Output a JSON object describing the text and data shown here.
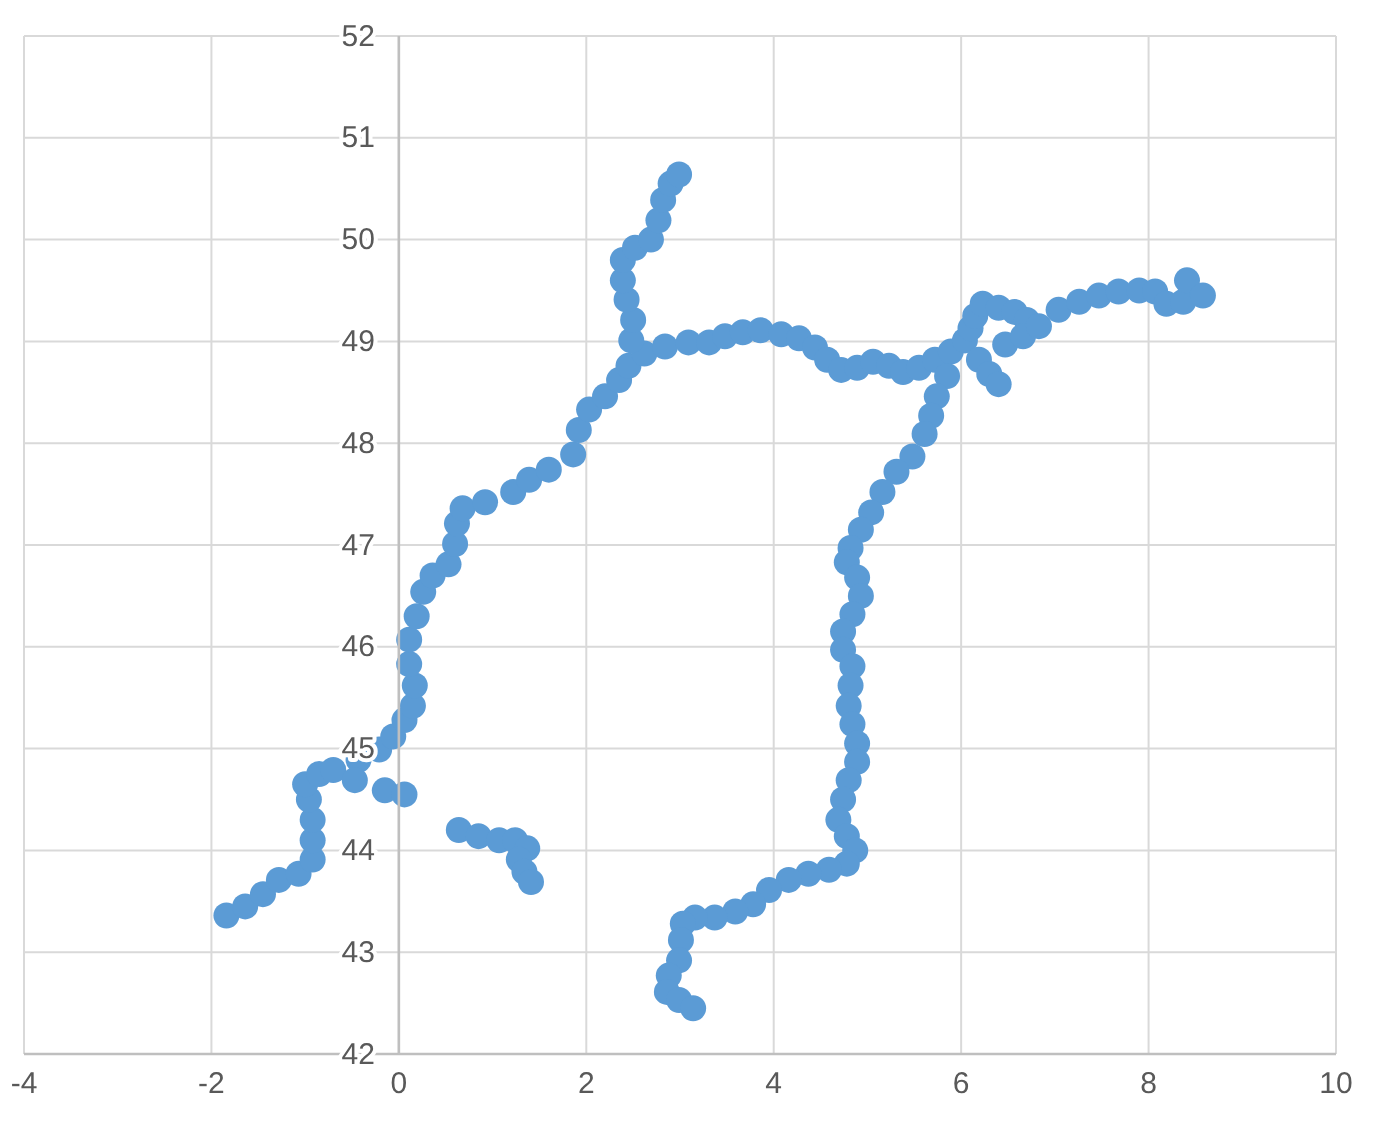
{
  "chart_data": {
    "type": "scatter",
    "x": [
      -1.84,
      -1.64,
      -1.45,
      -1.28,
      -1.07,
      -0.92,
      -0.92,
      -0.92,
      -0.96,
      -1.0,
      -0.85,
      -0.7,
      -0.43,
      -0.21,
      -0.06,
      0.06,
      0.15,
      0.17,
      0.11,
      0.11,
      0.19,
      0.26,
      0.36,
      0.53,
      0.6,
      0.62,
      0.68,
      0.92,
      1.22,
      1.39,
      1.6,
      1.86,
      1.92,
      2.03,
      2.2,
      2.35,
      2.45,
      2.62,
      2.48,
      2.5,
      2.43,
      2.39,
      2.39,
      2.52,
      2.69,
      2.77,
      2.82,
      2.9,
      2.99,
      2.84,
      3.09,
      3.31,
      3.48,
      3.67,
      3.86,
      4.08,
      4.27,
      4.44,
      4.57,
      4.72,
      4.89,
      5.06,
      5.23,
      5.38,
      5.55,
      5.72,
      5.89,
      6.04,
      6.1,
      6.15,
      6.23,
      6.4,
      6.57,
      6.7,
      6.47,
      6.66,
      6.83,
      7.04,
      7.26,
      7.47,
      7.68,
      7.9,
      8.07,
      8.19,
      8.37,
      8.41,
      8.58,
      6.19,
      6.3,
      6.4,
      5.85,
      5.74,
      5.68,
      5.61,
      5.48,
      5.31,
      5.16,
      5.04,
      4.93,
      4.82,
      4.78,
      4.89,
      4.93,
      4.84,
      4.74,
      4.74,
      4.84,
      4.82,
      4.8,
      4.84,
      4.89,
      4.89,
      4.8,
      4.74,
      4.69,
      4.78,
      4.87,
      4.78,
      4.59,
      4.37,
      4.16,
      3.95,
      3.78,
      3.59,
      3.37,
      3.16,
      3.03,
      3.01,
      2.99,
      2.88,
      2.86,
      2.99,
      3.14,
      -0.47,
      -0.15,
      0.06,
      0.64,
      0.85,
      1.07,
      1.24,
      1.37,
      1.28,
      1.34,
      1.41
    ],
    "values": [
      43.36,
      43.45,
      43.57,
      43.71,
      43.77,
      43.91,
      44.1,
      44.3,
      44.5,
      44.65,
      44.75,
      44.79,
      44.89,
      44.99,
      45.12,
      45.28,
      45.42,
      45.62,
      45.83,
      46.07,
      46.3,
      46.54,
      46.7,
      46.81,
      47.01,
      47.21,
      47.36,
      47.42,
      47.52,
      47.64,
      47.74,
      47.89,
      48.13,
      48.33,
      48.46,
      48.62,
      48.76,
      48.88,
      49.01,
      49.21,
      49.41,
      49.6,
      49.8,
      49.92,
      50.0,
      50.19,
      50.39,
      50.55,
      50.64,
      48.95,
      48.99,
      48.99,
      49.05,
      49.09,
      49.11,
      49.07,
      49.03,
      48.94,
      48.82,
      48.72,
      48.74,
      48.8,
      48.76,
      48.7,
      48.74,
      48.82,
      48.9,
      49.01,
      49.13,
      49.25,
      49.37,
      49.33,
      49.29,
      49.21,
      48.97,
      49.05,
      49.15,
      49.31,
      49.39,
      49.45,
      49.49,
      49.5,
      49.49,
      49.37,
      49.39,
      49.6,
      49.45,
      48.82,
      48.68,
      48.58,
      48.66,
      48.46,
      48.27,
      48.09,
      47.87,
      47.72,
      47.52,
      47.32,
      47.15,
      46.97,
      46.83,
      46.68,
      46.5,
      46.32,
      46.15,
      45.97,
      45.81,
      45.62,
      45.42,
      45.24,
      45.05,
      44.87,
      44.69,
      44.5,
      44.3,
      44.14,
      44.0,
      43.87,
      43.81,
      43.77,
      43.71,
      43.61,
      43.47,
      43.4,
      43.34,
      43.34,
      43.28,
      43.12,
      42.92,
      42.77,
      42.61,
      42.53,
      42.45,
      44.69,
      44.59,
      44.55,
      44.2,
      44.14,
      44.1,
      44.1,
      44.02,
      43.91,
      43.79,
      43.69
    ],
    "color": "#5b9bd5",
    "marker": "circle",
    "xlim": [
      -4,
      10
    ],
    "ylim": [
      42,
      52
    ],
    "xticks": [
      -4,
      -2,
      0,
      2,
      4,
      6,
      8,
      10
    ],
    "yticks": [
      42,
      43,
      44,
      45,
      46,
      47,
      48,
      49,
      50,
      51,
      52
    ],
    "grid": true
  }
}
